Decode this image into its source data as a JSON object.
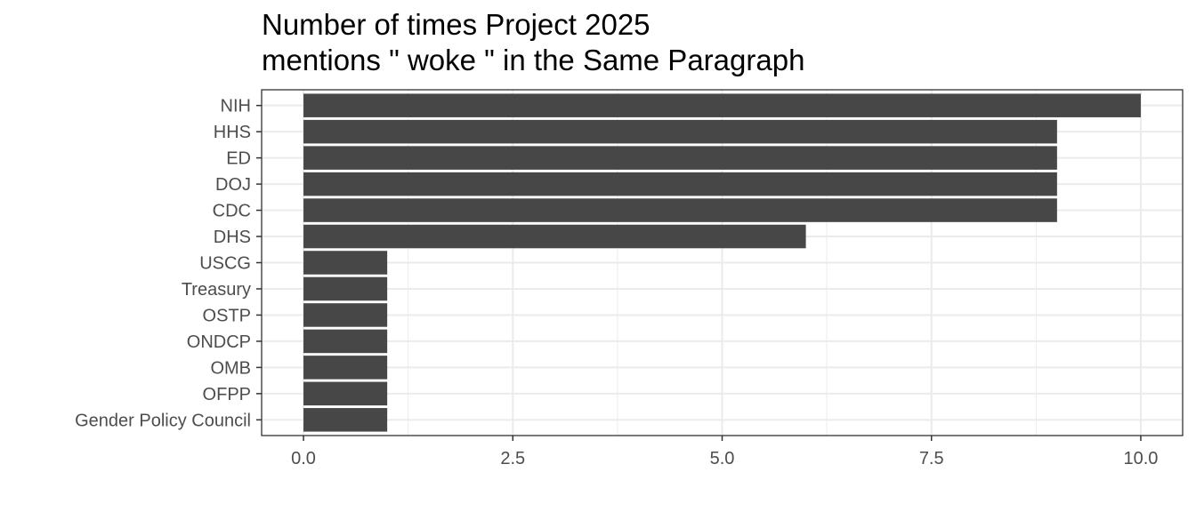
{
  "chart_data": {
    "type": "bar",
    "orientation": "horizontal",
    "title_lines": [
      "Number of times Project 2025",
      "mentions \" woke \" in the Same Paragraph"
    ],
    "xlabel": "",
    "ylabel": "",
    "categories": [
      "NIH",
      "HHS",
      "ED",
      "DOJ",
      "CDC",
      "DHS",
      "USCG",
      "Treasury",
      "OSTP",
      "ONDCP",
      "OMB",
      "OFPP",
      "Gender Policy Council"
    ],
    "values": [
      10,
      9,
      9,
      9,
      9,
      6,
      1,
      1,
      1,
      1,
      1,
      1,
      1
    ],
    "xlim": [
      -0.5,
      10.5
    ],
    "xticks": [
      0.0,
      2.5,
      5.0,
      7.5,
      10.0
    ],
    "xtick_labels": [
      "0.0",
      "2.5",
      "5.0",
      "7.5",
      "10.0"
    ],
    "grid": true,
    "bar_color": "#474747",
    "grid_color": "#ebebeb",
    "panel_border_color": "#333333"
  }
}
